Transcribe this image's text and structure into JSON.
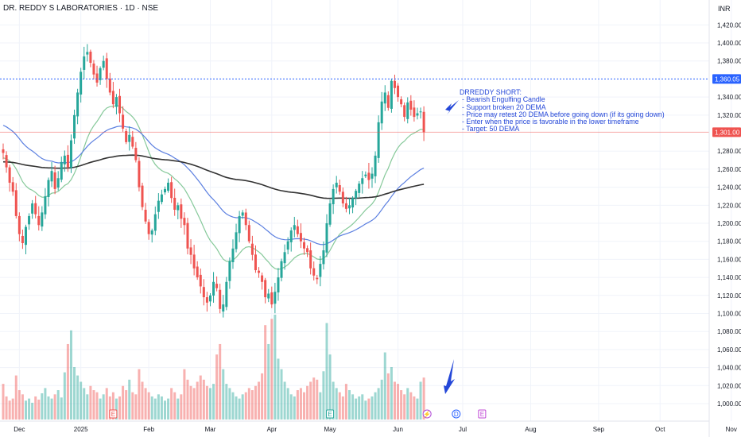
{
  "header": {
    "title": "DR. REDDY S LABORATORIES · 1D · NSE",
    "currency": "INR"
  },
  "colors": {
    "up": "#26a69a",
    "down": "#ef5350",
    "dema20": "#86c99a",
    "dema50": "#5b7fe0",
    "dema200": "#333333",
    "annotation": "#2447d8"
  },
  "annotation": {
    "heading": "DRREDDY SHORT:",
    "lines": [
      "- Bearish Engulfing Candle",
      "- Support broken 20 DEMA",
      "- Price may retest 20 DEMA before going down (if its going down)",
      "- Enter when the price is favorable in the lower timeframe",
      "- Target: 50 DEMA"
    ]
  },
  "chart_data": {
    "type": "candlestick",
    "title": "DR. REDDY S LABORATORIES · 1D · NSE",
    "ylabel": "INR",
    "ylim": [
      985,
      1430
    ],
    "y_ticks": [
      "1,420.00",
      "1,400.00",
      "1,380.00",
      "1,340.00",
      "1,320.00",
      "1,280.00",
      "1,260.00",
      "1,240.00",
      "1,220.00",
      "1,200.00",
      "1,180.00",
      "1,160.00",
      "1,140.00",
      "1,120.00",
      "1,100.00",
      "1,080.00",
      "1,060.00",
      "1,040.00",
      "1,020.00",
      "1,000.00"
    ],
    "price_labels": [
      {
        "value": 1360.05,
        "label": "1,360.05",
        "color": "#2962ff"
      },
      {
        "value": 1301.0,
        "label": "1,301.00",
        "color": "#ef5350"
      }
    ],
    "x_ticks": [
      {
        "label": "Dec",
        "bar": 5
      },
      {
        "label": "2025",
        "bar": 24
      },
      {
        "label": "Feb",
        "bar": 45
      },
      {
        "label": "Mar",
        "bar": 64
      },
      {
        "label": "Apr",
        "bar": 83
      },
      {
        "label": "May",
        "bar": 101
      },
      {
        "label": "Jun",
        "bar": 122
      },
      {
        "label": "Jul",
        "bar": 142
      },
      {
        "label": "Aug",
        "bar": 163
      },
      {
        "label": "Sep",
        "bar": 184
      },
      {
        "label": "Oct",
        "bar": 203
      },
      {
        "label": "Nov",
        "bar": 225
      }
    ],
    "closes": [
      1278,
      1262,
      1245,
      1235,
      1208,
      1188,
      1178,
      1196,
      1208,
      1222,
      1210,
      1198,
      1212,
      1230,
      1248,
      1258,
      1238,
      1250,
      1268,
      1275,
      1262,
      1292,
      1320,
      1345,
      1368,
      1385,
      1390,
      1378,
      1365,
      1356,
      1372,
      1380,
      1360,
      1345,
      1332,
      1340,
      1322,
      1305,
      1290,
      1298,
      1285,
      1270,
      1240,
      1218,
      1202,
      1188,
      1192,
      1210,
      1225,
      1232,
      1238,
      1245,
      1228,
      1215,
      1220,
      1205,
      1198,
      1172,
      1165,
      1150,
      1140,
      1130,
      1118,
      1112,
      1120,
      1135,
      1128,
      1105,
      1110,
      1135,
      1158,
      1172,
      1190,
      1208,
      1212,
      1198,
      1180,
      1165,
      1148,
      1145,
      1135,
      1118,
      1122,
      1110,
      1124,
      1140,
      1158,
      1168,
      1180,
      1192,
      1198,
      1188,
      1180,
      1172,
      1168,
      1150,
      1142,
      1138,
      1155,
      1170,
      1200,
      1222,
      1238,
      1245,
      1235,
      1222,
      1216,
      1220,
      1228,
      1236,
      1244,
      1250,
      1254,
      1248,
      1255,
      1275,
      1312,
      1335,
      1345,
      1328,
      1358,
      1350,
      1340,
      1332,
      1318,
      1334,
      1326,
      1318,
      1322,
      1324,
      1301
    ],
    "volumes": [
      0.34,
      0.22,
      0.18,
      0.2,
      0.42,
      0.28,
      0.24,
      0.18,
      0.2,
      0.16,
      0.22,
      0.19,
      0.25,
      0.3,
      0.22,
      0.2,
      0.24,
      0.28,
      0.21,
      0.45,
      0.72,
      0.85,
      0.5,
      0.42,
      0.36,
      0.3,
      0.24,
      0.32,
      0.28,
      0.26,
      0.2,
      0.24,
      0.3,
      0.22,
      0.26,
      0.2,
      0.22,
      0.32,
      0.28,
      0.38,
      0.26,
      0.24,
      0.48,
      0.36,
      0.3,
      0.26,
      0.22,
      0.2,
      0.24,
      0.22,
      0.18,
      0.2,
      0.3,
      0.26,
      0.2,
      0.24,
      0.48,
      0.38,
      0.32,
      0.3,
      0.36,
      0.42,
      0.38,
      0.32,
      0.3,
      0.34,
      0.62,
      0.72,
      0.48,
      0.34,
      0.3,
      0.26,
      0.22,
      0.2,
      0.24,
      0.26,
      0.3,
      0.28,
      0.32,
      0.36,
      0.44,
      0.9,
      0.72,
      0.96,
      1.0,
      0.58,
      0.48,
      0.36,
      0.3,
      0.24,
      0.22,
      0.28,
      0.3,
      0.26,
      0.32,
      0.36,
      0.4,
      0.38,
      0.26,
      0.46,
      0.92,
      0.62,
      0.36,
      0.3,
      0.26,
      0.22,
      0.34,
      0.28,
      0.24,
      0.2,
      0.22,
      0.24,
      0.18,
      0.2,
      0.22,
      0.26,
      0.3,
      0.38,
      0.64,
      0.44,
      0.5,
      0.36,
      0.34,
      0.28,
      0.24,
      0.3,
      0.26,
      0.22,
      0.2,
      0.36,
      0.4
    ],
    "series": [
      {
        "name": "",
        "period": 20,
        "color": "#86c99a"
      },
      {
        "name": "",
        "period": 50,
        "color": "#5b7fe0"
      },
      {
        "name": "",
        "period": 200,
        "color": "#333333"
      }
    ],
    "event_markers": [
      {
        "bar": 34,
        "label": "E",
        "color": "#ef5350"
      },
      {
        "bar": 101,
        "label": "E",
        "color": "#26a69a"
      },
      {
        "bar": 131,
        "label": "⚡",
        "color": "#b04ad6"
      },
      {
        "bar": 140,
        "label": "D",
        "color": "#2962ff"
      },
      {
        "bar": 148,
        "label": "E",
        "color": "#c04ad6"
      }
    ]
  }
}
